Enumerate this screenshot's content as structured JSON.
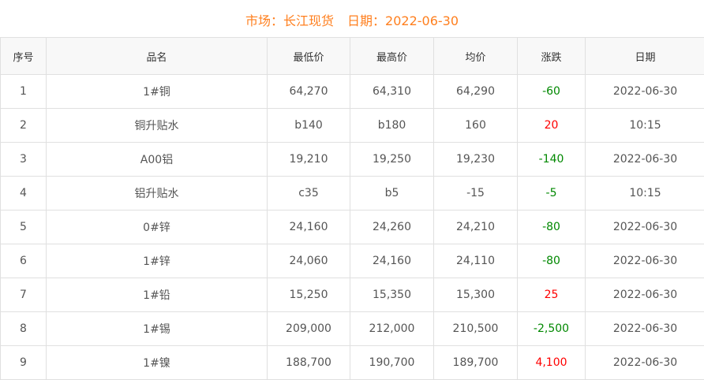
{
  "header": {
    "market": "市场：长江现货",
    "date": "日期：2022-06-30"
  },
  "colors": {
    "title": "#ff7f1e",
    "up": "#ff0000",
    "down": "#008000"
  },
  "table": {
    "columns": [
      "序号",
      "品名",
      "最低价",
      "最高价",
      "均价",
      "涨跌",
      "日期"
    ],
    "rows": [
      [
        "1",
        "1#铜",
        "64,270",
        "64,310",
        "64,290",
        "-60",
        "2022-06-30"
      ],
      [
        "2",
        "铜升贴水",
        "b140",
        "b180",
        "160",
        "20",
        "10:15"
      ],
      [
        "3",
        "A00铝",
        "19,210",
        "19,250",
        "19,230",
        "-140",
        "2022-06-30"
      ],
      [
        "4",
        "铝升贴水",
        "c35",
        "b5",
        "-15",
        "-5",
        "10:15"
      ],
      [
        "5",
        "0#锌",
        "24,160",
        "24,260",
        "24,210",
        "-80",
        "2022-06-30"
      ],
      [
        "6",
        "1#锌",
        "24,060",
        "24,160",
        "24,110",
        "-80",
        "2022-06-30"
      ],
      [
        "7",
        "1#铅",
        "15,250",
        "15,350",
        "15,300",
        "25",
        "2022-06-30"
      ],
      [
        "8",
        "1#锡",
        "209,000",
        "212,000",
        "210,500",
        "-2,500",
        "2022-06-30"
      ],
      [
        "9",
        "1#镍",
        "188,700",
        "190,700",
        "189,700",
        "4,100",
        "2022-06-30"
      ]
    ]
  }
}
